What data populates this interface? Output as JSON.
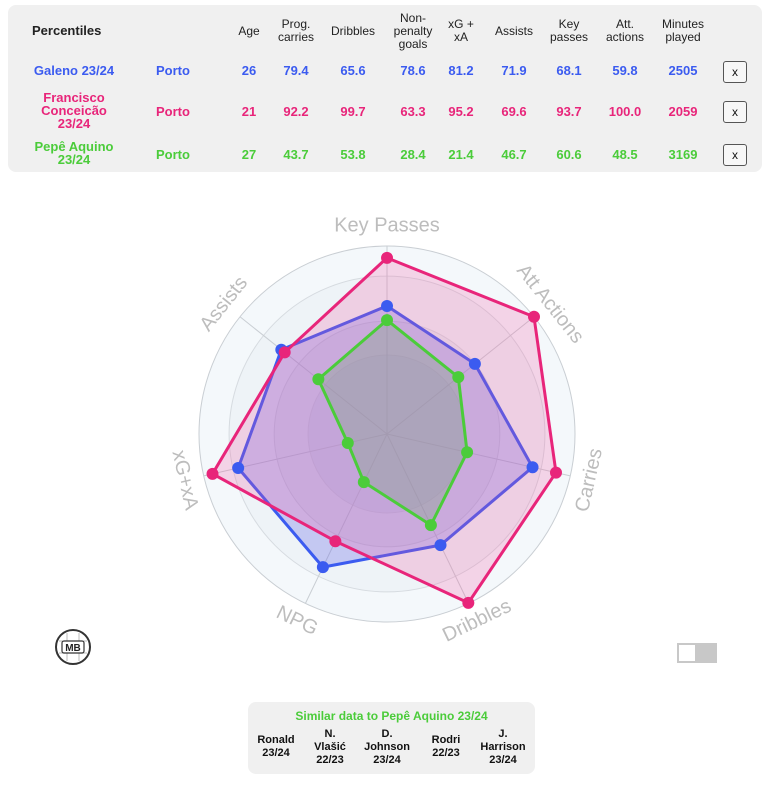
{
  "table": {
    "header": {
      "title": "Percentiles",
      "columns": [
        "Age",
        "Prog.\ncarries",
        "Dribbles",
        "Non-\npenalty\ngoals",
        "xG +\nxA",
        "Assists",
        "Key\npasses",
        "Att.\nactions",
        "Minutes\nplayed"
      ]
    },
    "rows": [
      {
        "player": "Galeno 23/24",
        "team": "Porto",
        "values": [
          "26",
          "79.4",
          "65.6",
          "78.6",
          "81.2",
          "71.9",
          "68.1",
          "59.8",
          "2505"
        ],
        "color": "#3b5bf0",
        "remove_label": "x"
      },
      {
        "player": "Francisco\nConceicão\n23/24",
        "team": "Porto",
        "values": [
          "21",
          "92.2",
          "99.7",
          "63.3",
          "95.2",
          "69.6",
          "93.7",
          "100.0",
          "2059"
        ],
        "color": "#e8257a",
        "remove_label": "x"
      },
      {
        "player": "Pepê Aquino\n23/24",
        "team": "Porto",
        "values": [
          "27",
          "43.7",
          "53.8",
          "28.4",
          "21.4",
          "46.7",
          "60.6",
          "48.5",
          "3169"
        ],
        "color": "#4bcc3a",
        "remove_label": "x"
      }
    ]
  },
  "chart_data": {
    "type": "radar",
    "axes": [
      "Key Passes",
      "Att Actions",
      "Carries",
      "Dribbles",
      "NPG",
      "xG+xA",
      "Assists"
    ],
    "range": [
      0,
      100
    ],
    "series": [
      {
        "name": "Galeno 23/24",
        "color": "#3b5bf0",
        "values": [
          68.1,
          59.8,
          79.4,
          65.6,
          78.6,
          81.2,
          71.9
        ]
      },
      {
        "name": "Francisco Conceicão 23/24",
        "color": "#e8257a",
        "values": [
          93.7,
          100.0,
          92.2,
          99.7,
          63.3,
          95.2,
          69.6
        ]
      },
      {
        "name": "Pepê Aquino 23/24",
        "color": "#4bcc3a",
        "values": [
          60.6,
          48.5,
          43.7,
          53.8,
          28.4,
          21.4,
          46.7
        ]
      }
    ]
  },
  "logo": {
    "text": "MB"
  },
  "similar": {
    "title": "Similar data to Pepê Aquino 23/24",
    "title_color": "#4bcc3a",
    "items": [
      "Ronald\n23/24",
      "N.\nVlašić\n22/23",
      "D.\nJohnson\n23/24",
      "Rodri\n22/23",
      "J.\nHarrison\n23/24"
    ]
  }
}
